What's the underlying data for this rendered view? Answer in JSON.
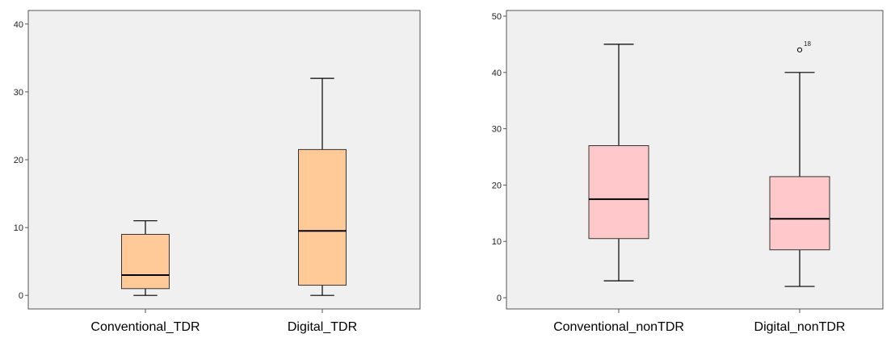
{
  "chart_data": [
    {
      "type": "box",
      "grid": false,
      "ylim": [
        -2,
        42
      ],
      "yticks": [
        0,
        10,
        20,
        30,
        40
      ],
      "categories": [
        "Conventional_TDR",
        "Digital_TDR"
      ],
      "box_color": "#FFC998",
      "background_color": "#F0F0F0",
      "boxes": [
        {
          "min": 0,
          "q1": 1,
          "median": 3,
          "q3": 9,
          "max": 11,
          "outliers": []
        },
        {
          "min": 0,
          "q1": 1.5,
          "median": 9.5,
          "q3": 21.5,
          "max": 32,
          "outliers": []
        }
      ]
    },
    {
      "type": "box",
      "grid": false,
      "ylim": [
        -2,
        51
      ],
      "yticks": [
        0,
        10,
        20,
        30,
        40,
        50
      ],
      "categories": [
        "Conventional_nonTDR",
        "Digital_nonTDR"
      ],
      "box_color": "#FFC8CA",
      "background_color": "#F0F0F0",
      "boxes": [
        {
          "min": 3,
          "q1": 10.5,
          "median": 17.5,
          "q3": 27,
          "max": 45,
          "outliers": []
        },
        {
          "min": 2,
          "q1": 8.5,
          "median": 14,
          "q3": 21.5,
          "max": 40,
          "outliers": [
            {
              "value": 44,
              "label": "18"
            }
          ]
        }
      ]
    }
  ]
}
